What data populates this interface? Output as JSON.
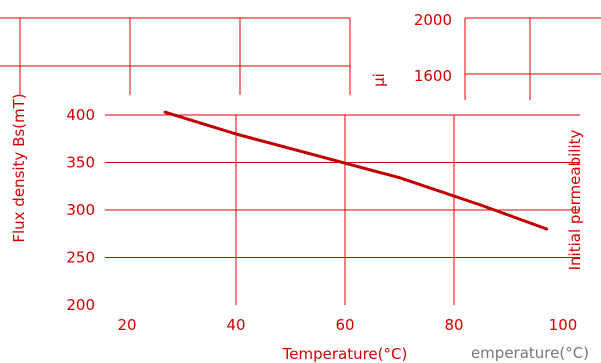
{
  "colors": {
    "accent": "#d40000",
    "grid": "#e00000",
    "curve": "#c00000",
    "background": "#ffffff"
  },
  "chart_data": [
    {
      "type": "line",
      "xlabel": "Temperature(°C)",
      "ylabel": "Flux density Bs(mT)",
      "y2label": "Initial permeability",
      "xlim": [
        20,
        100
      ],
      "ylim": [
        200,
        400
      ],
      "xticks": [
        "20",
        "40",
        "60",
        "80",
        "100"
      ],
      "yticks": [
        "200",
        "250",
        "300",
        "350",
        "400"
      ],
      "grid": true,
      "series": [
        {
          "x": [
            27,
            40,
            55,
            70,
            85,
            97
          ],
          "y": [
            403,
            380,
            357,
            334,
            305,
            280
          ]
        }
      ]
    },
    {
      "type": "line",
      "ylabel": "μi",
      "xlabel": "emperature(°C)",
      "yticks": [
        "1600",
        "2000"
      ],
      "grid": true,
      "series": []
    }
  ]
}
